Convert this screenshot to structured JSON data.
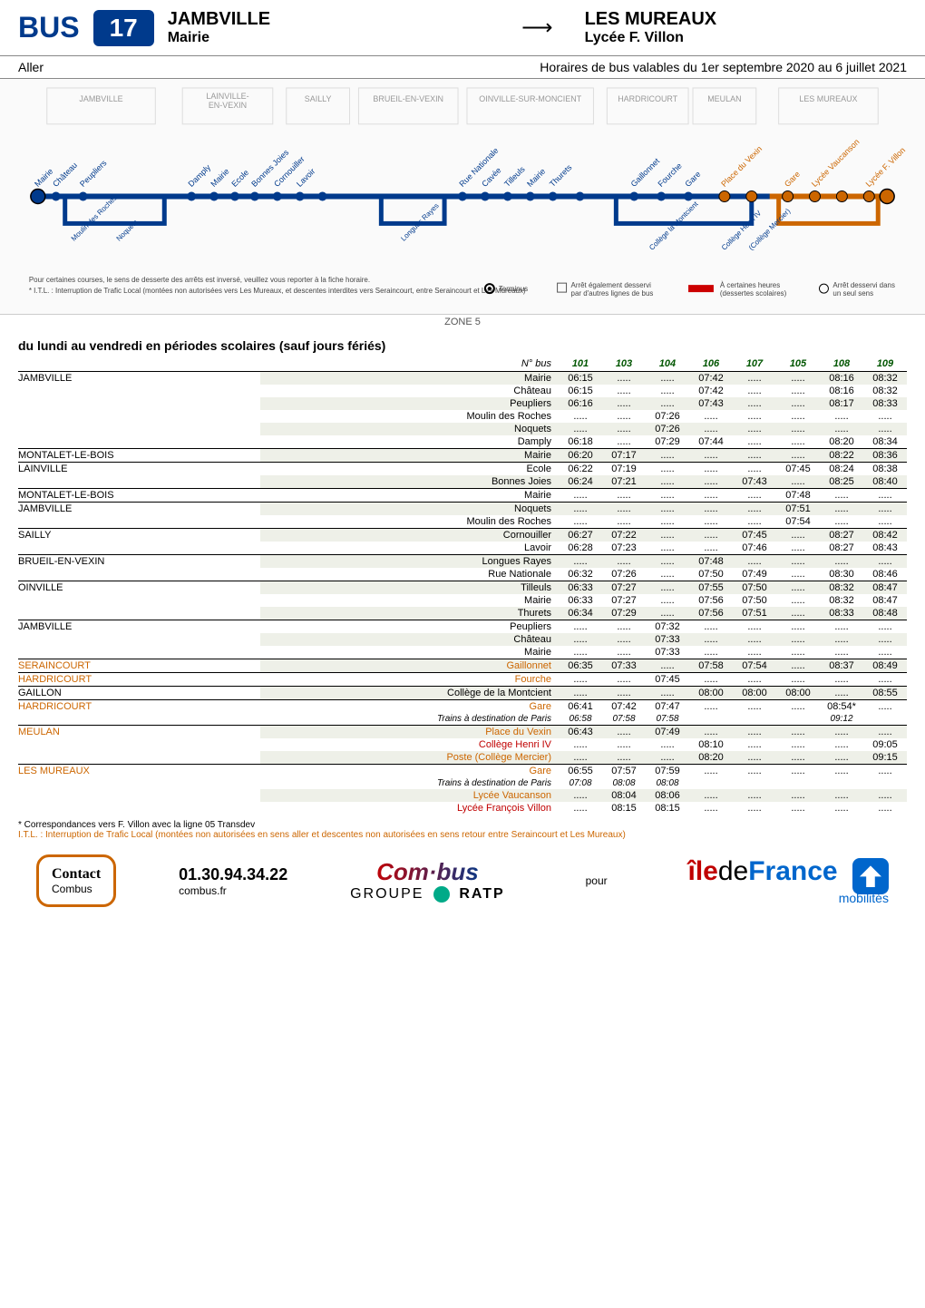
{
  "header": {
    "bus_label": "BUS",
    "line_number": "17",
    "from_title": "JAMBVILLE",
    "from_sub": "Mairie",
    "to_title": "LES MUREAUX",
    "to_sub": "Lycée F. Villon"
  },
  "aller": {
    "label": "Aller",
    "validity": "Horaires de bus valables du 1er septembre 2020 au 6 juillet 2021"
  },
  "map": {
    "communes": [
      "JAMBVILLE",
      "LAINVILLE-EN-VEXIN",
      "SAILLY",
      "BRUEIL-EN-VEXIN",
      "OINVILLE-SUR-MONCIENT",
      "HARDRICOURT",
      "MEULAN",
      "LES MUREAUX"
    ],
    "legend": {
      "note1": "Pour certaines courses, le sens de desserte des arrêts est inversé, veuillez vous reporter à la fiche horaire.",
      "note2": "* I.T.L. : Interruption de Trafic Local (montées non autorisées vers Les Mureaux, et descentes interdites vers Seraincourt, entre Seraincourt et Les Mureaux)",
      "terminus": "Terminus",
      "also": "Arrêt également desservi par d'autres lignes de bus",
      "hours": "À certaines heures (dessertes scolaires)",
      "oneway": "Arrêt desservi dans un seul sens"
    },
    "zone": "ZONE 5",
    "line_color": "#003a8c",
    "dot_color": "#003a8c",
    "alt_color": "#cc6600"
  },
  "schedule": {
    "title": "du lundi au vendredi en périodes scolaires  (sauf jours fériés)",
    "nbus_label": "N° bus",
    "columns": [
      "101",
      "103",
      "104",
      "106",
      "107",
      "105",
      "108",
      "109"
    ],
    "rows": [
      {
        "town": "JAMBVILLE",
        "stop": "Mairie",
        "odd": true,
        "sep": true,
        "t": [
          "06:15",
          ".....",
          ".....",
          "07:42",
          ".....",
          ".....",
          "08:16",
          "08:32"
        ]
      },
      {
        "town": "",
        "stop": "Château",
        "odd": false,
        "t": [
          "06:15",
          ".....",
          ".....",
          "07:42",
          ".....",
          ".....",
          "08:16",
          "08:32"
        ]
      },
      {
        "town": "",
        "stop": "Peupliers",
        "odd": true,
        "t": [
          "06:16",
          ".....",
          ".....",
          "07:43",
          ".....",
          ".....",
          "08:17",
          "08:33"
        ]
      },
      {
        "town": "",
        "stop": "Moulin des Roches",
        "odd": false,
        "t": [
          ".....",
          ".....",
          "07:26",
          ".....",
          ".....",
          ".....",
          ".....",
          "....."
        ]
      },
      {
        "town": "",
        "stop": "Noquets",
        "odd": true,
        "t": [
          ".....",
          ".....",
          "07:26",
          ".....",
          ".....",
          ".....",
          ".....",
          "....."
        ]
      },
      {
        "town": "",
        "stop": "Damply",
        "odd": false,
        "t": [
          "06:18",
          ".....",
          "07:29",
          "07:44",
          ".....",
          ".....",
          "08:20",
          "08:34"
        ]
      },
      {
        "town": "MONTALET-LE-BOIS",
        "stop": "Mairie",
        "odd": true,
        "sep": true,
        "t": [
          "06:20",
          "07:17",
          ".....",
          ".....",
          ".....",
          ".....",
          "08:22",
          "08:36"
        ]
      },
      {
        "town": "LAINVILLE",
        "stop": "Ecole",
        "odd": false,
        "sep": true,
        "t": [
          "06:22",
          "07:19",
          ".....",
          ".....",
          ".....",
          "07:45",
          "08:24",
          "08:38"
        ]
      },
      {
        "town": "",
        "stop": "Bonnes Joies",
        "odd": true,
        "t": [
          "06:24",
          "07:21",
          ".....",
          ".....",
          "07:43",
          ".....",
          "08:25",
          "08:40"
        ]
      },
      {
        "town": "MONTALET-LE-BOIS",
        "stop": "Mairie",
        "odd": false,
        "sep": true,
        "t": [
          ".....",
          ".....",
          ".....",
          ".....",
          ".....",
          "07:48",
          ".....",
          "....."
        ]
      },
      {
        "town": "JAMBVILLE",
        "stop": "Noquets",
        "odd": true,
        "sep": true,
        "t": [
          ".....",
          ".....",
          ".....",
          ".....",
          ".....",
          "07:51",
          ".....",
          "....."
        ]
      },
      {
        "town": "",
        "stop": "Moulin des Roches",
        "odd": false,
        "t": [
          ".....",
          ".....",
          ".....",
          ".....",
          ".....",
          "07:54",
          ".....",
          "....."
        ]
      },
      {
        "town": "SAILLY",
        "stop": "Cornouiller",
        "odd": true,
        "sep": true,
        "t": [
          "06:27",
          "07:22",
          ".....",
          ".....",
          "07:45",
          ".....",
          "08:27",
          "08:42"
        ]
      },
      {
        "town": "",
        "stop": "Lavoir",
        "odd": false,
        "t": [
          "06:28",
          "07:23",
          ".....",
          ".....",
          "07:46",
          ".....",
          "08:27",
          "08:43"
        ]
      },
      {
        "town": "BRUEIL-EN-VEXIN",
        "stop": "Longues Rayes",
        "odd": true,
        "sep": true,
        "t": [
          ".....",
          ".....",
          ".....",
          "07:48",
          ".....",
          ".....",
          ".....",
          "....."
        ]
      },
      {
        "town": "",
        "stop": "Rue Nationale",
        "odd": false,
        "t": [
          "06:32",
          "07:26",
          ".....",
          "07:50",
          "07:49",
          ".....",
          "08:30",
          "08:46"
        ]
      },
      {
        "town": "OINVILLE",
        "stop": "Tilleuls",
        "odd": true,
        "sep": true,
        "t": [
          "06:33",
          "07:27",
          ".....",
          "07:55",
          "07:50",
          ".....",
          "08:32",
          "08:47"
        ]
      },
      {
        "town": "",
        "stop": "Mairie",
        "odd": false,
        "t": [
          "06:33",
          "07:27",
          ".....",
          "07:56",
          "07:50",
          ".....",
          "08:32",
          "08:47"
        ]
      },
      {
        "town": "",
        "stop": "Thurets",
        "odd": true,
        "t": [
          "06:34",
          "07:29",
          ".....",
          "07:56",
          "07:51",
          ".....",
          "08:33",
          "08:48"
        ]
      },
      {
        "town": "JAMBVILLE",
        "stop": "Peupliers",
        "odd": false,
        "sep": true,
        "t": [
          ".....",
          ".....",
          "07:32",
          ".....",
          ".....",
          ".....",
          ".....",
          "....."
        ]
      },
      {
        "town": "",
        "stop": "Château",
        "odd": true,
        "t": [
          ".....",
          ".....",
          "07:33",
          ".....",
          ".....",
          ".....",
          ".....",
          "....."
        ]
      },
      {
        "town": "",
        "stop": "Mairie",
        "odd": false,
        "t": [
          ".....",
          ".....",
          "07:33",
          ".....",
          ".....",
          ".....",
          ".....",
          "....."
        ]
      },
      {
        "town": "SERAINCOURT",
        "town_class": "orange",
        "stop": "Gaillonnet",
        "stop_class": "orange",
        "odd": true,
        "sep": true,
        "t": [
          "06:35",
          "07:33",
          ".....",
          "07:58",
          "07:54",
          ".....",
          "08:37",
          "08:49"
        ]
      },
      {
        "town": "HARDRICOURT",
        "town_class": "orange",
        "stop": "Fourche",
        "stop_class": "orange",
        "odd": false,
        "sep": true,
        "t": [
          ".....",
          ".....",
          "07:45",
          ".....",
          ".....",
          ".....",
          ".....",
          "....."
        ]
      },
      {
        "town": "GAILLON",
        "stop": "Collège de la Montcient",
        "odd": true,
        "sep": true,
        "t": [
          ".....",
          ".....",
          ".....",
          "08:00",
          "08:00",
          "08:00",
          ".....",
          "08:55"
        ]
      },
      {
        "town": "HARDRICOURT",
        "town_class": "orange",
        "stop": "Gare",
        "stop_class": "orange",
        "odd": false,
        "sep": true,
        "t": [
          "06:41",
          "07:42",
          "07:47",
          ".....",
          ".....",
          ".....",
          "08:54*",
          "....."
        ]
      },
      {
        "town": "",
        "stop": "Trains à destination de Paris",
        "trainnote": true,
        "odd": false,
        "t": [
          "06:58",
          "07:58",
          "07:58",
          "",
          "",
          "",
          "09:12",
          ""
        ]
      },
      {
        "town": "MEULAN",
        "town_class": "orange",
        "stop": "Place du Vexin",
        "stop_class": "orange",
        "odd": true,
        "sep": true,
        "t": [
          "06:43",
          ".....",
          "07:49",
          ".....",
          ".....",
          ".....",
          ".....",
          "....."
        ]
      },
      {
        "town": "",
        "stop": "Collège Henri IV",
        "stop_class": "red",
        "odd": false,
        "t": [
          ".....",
          ".....",
          ".....",
          "08:10",
          ".....",
          ".....",
          ".....",
          "09:05"
        ]
      },
      {
        "town": "",
        "stop": "Poste (Collège Mercier)",
        "stop_class": "orange",
        "odd": true,
        "t": [
          ".....",
          ".....",
          ".....",
          "08:20",
          ".....",
          ".....",
          ".....",
          "09:15"
        ]
      },
      {
        "town": "LES MUREAUX",
        "town_class": "orange",
        "stop": "Gare",
        "stop_class": "orange",
        "odd": false,
        "sep": true,
        "t": [
          "06:55",
          "07:57",
          "07:59",
          ".....",
          ".....",
          ".....",
          ".....",
          "....."
        ]
      },
      {
        "town": "",
        "stop": "Trains à destination de Paris",
        "trainnote": true,
        "odd": false,
        "t": [
          "07:08",
          "08:08",
          "08:08",
          "",
          "",
          "",
          "",
          ""
        ]
      },
      {
        "town": "",
        "stop": "Lycée Vaucanson",
        "stop_class": "orange",
        "odd": true,
        "t": [
          ".....",
          "08:04",
          "08:06",
          ".....",
          ".....",
          ".....",
          ".....",
          "....."
        ]
      },
      {
        "town": "",
        "stop": "Lycée François Villon",
        "stop_class": "red",
        "odd": false,
        "t": [
          ".....",
          "08:15",
          "08:15",
          ".....",
          ".....",
          ".....",
          ".....",
          "....."
        ]
      }
    ]
  },
  "footnotes": {
    "star": "* Correspondances vers F. Villon avec la ligne 05 Transdev",
    "itl": "I.T.L. : Interruption de Trafic Local (montées non autorisées en sens aller et descentes non autorisées en sens retour entre Seraincourt et Les Mureaux)"
  },
  "bottom": {
    "contact_title": "Contact",
    "contact_sub": "Combus",
    "phone": "01.30.94.34.22",
    "phone_sub": "combus.fr",
    "combus_logo": "Com·bus",
    "groupe": "GROUPE",
    "ratp": "RATP",
    "pour": "pour",
    "idfm_ile": "île",
    "idfm_de": "de",
    "idfm_france": "France",
    "idfm_sub": "mobilités"
  }
}
